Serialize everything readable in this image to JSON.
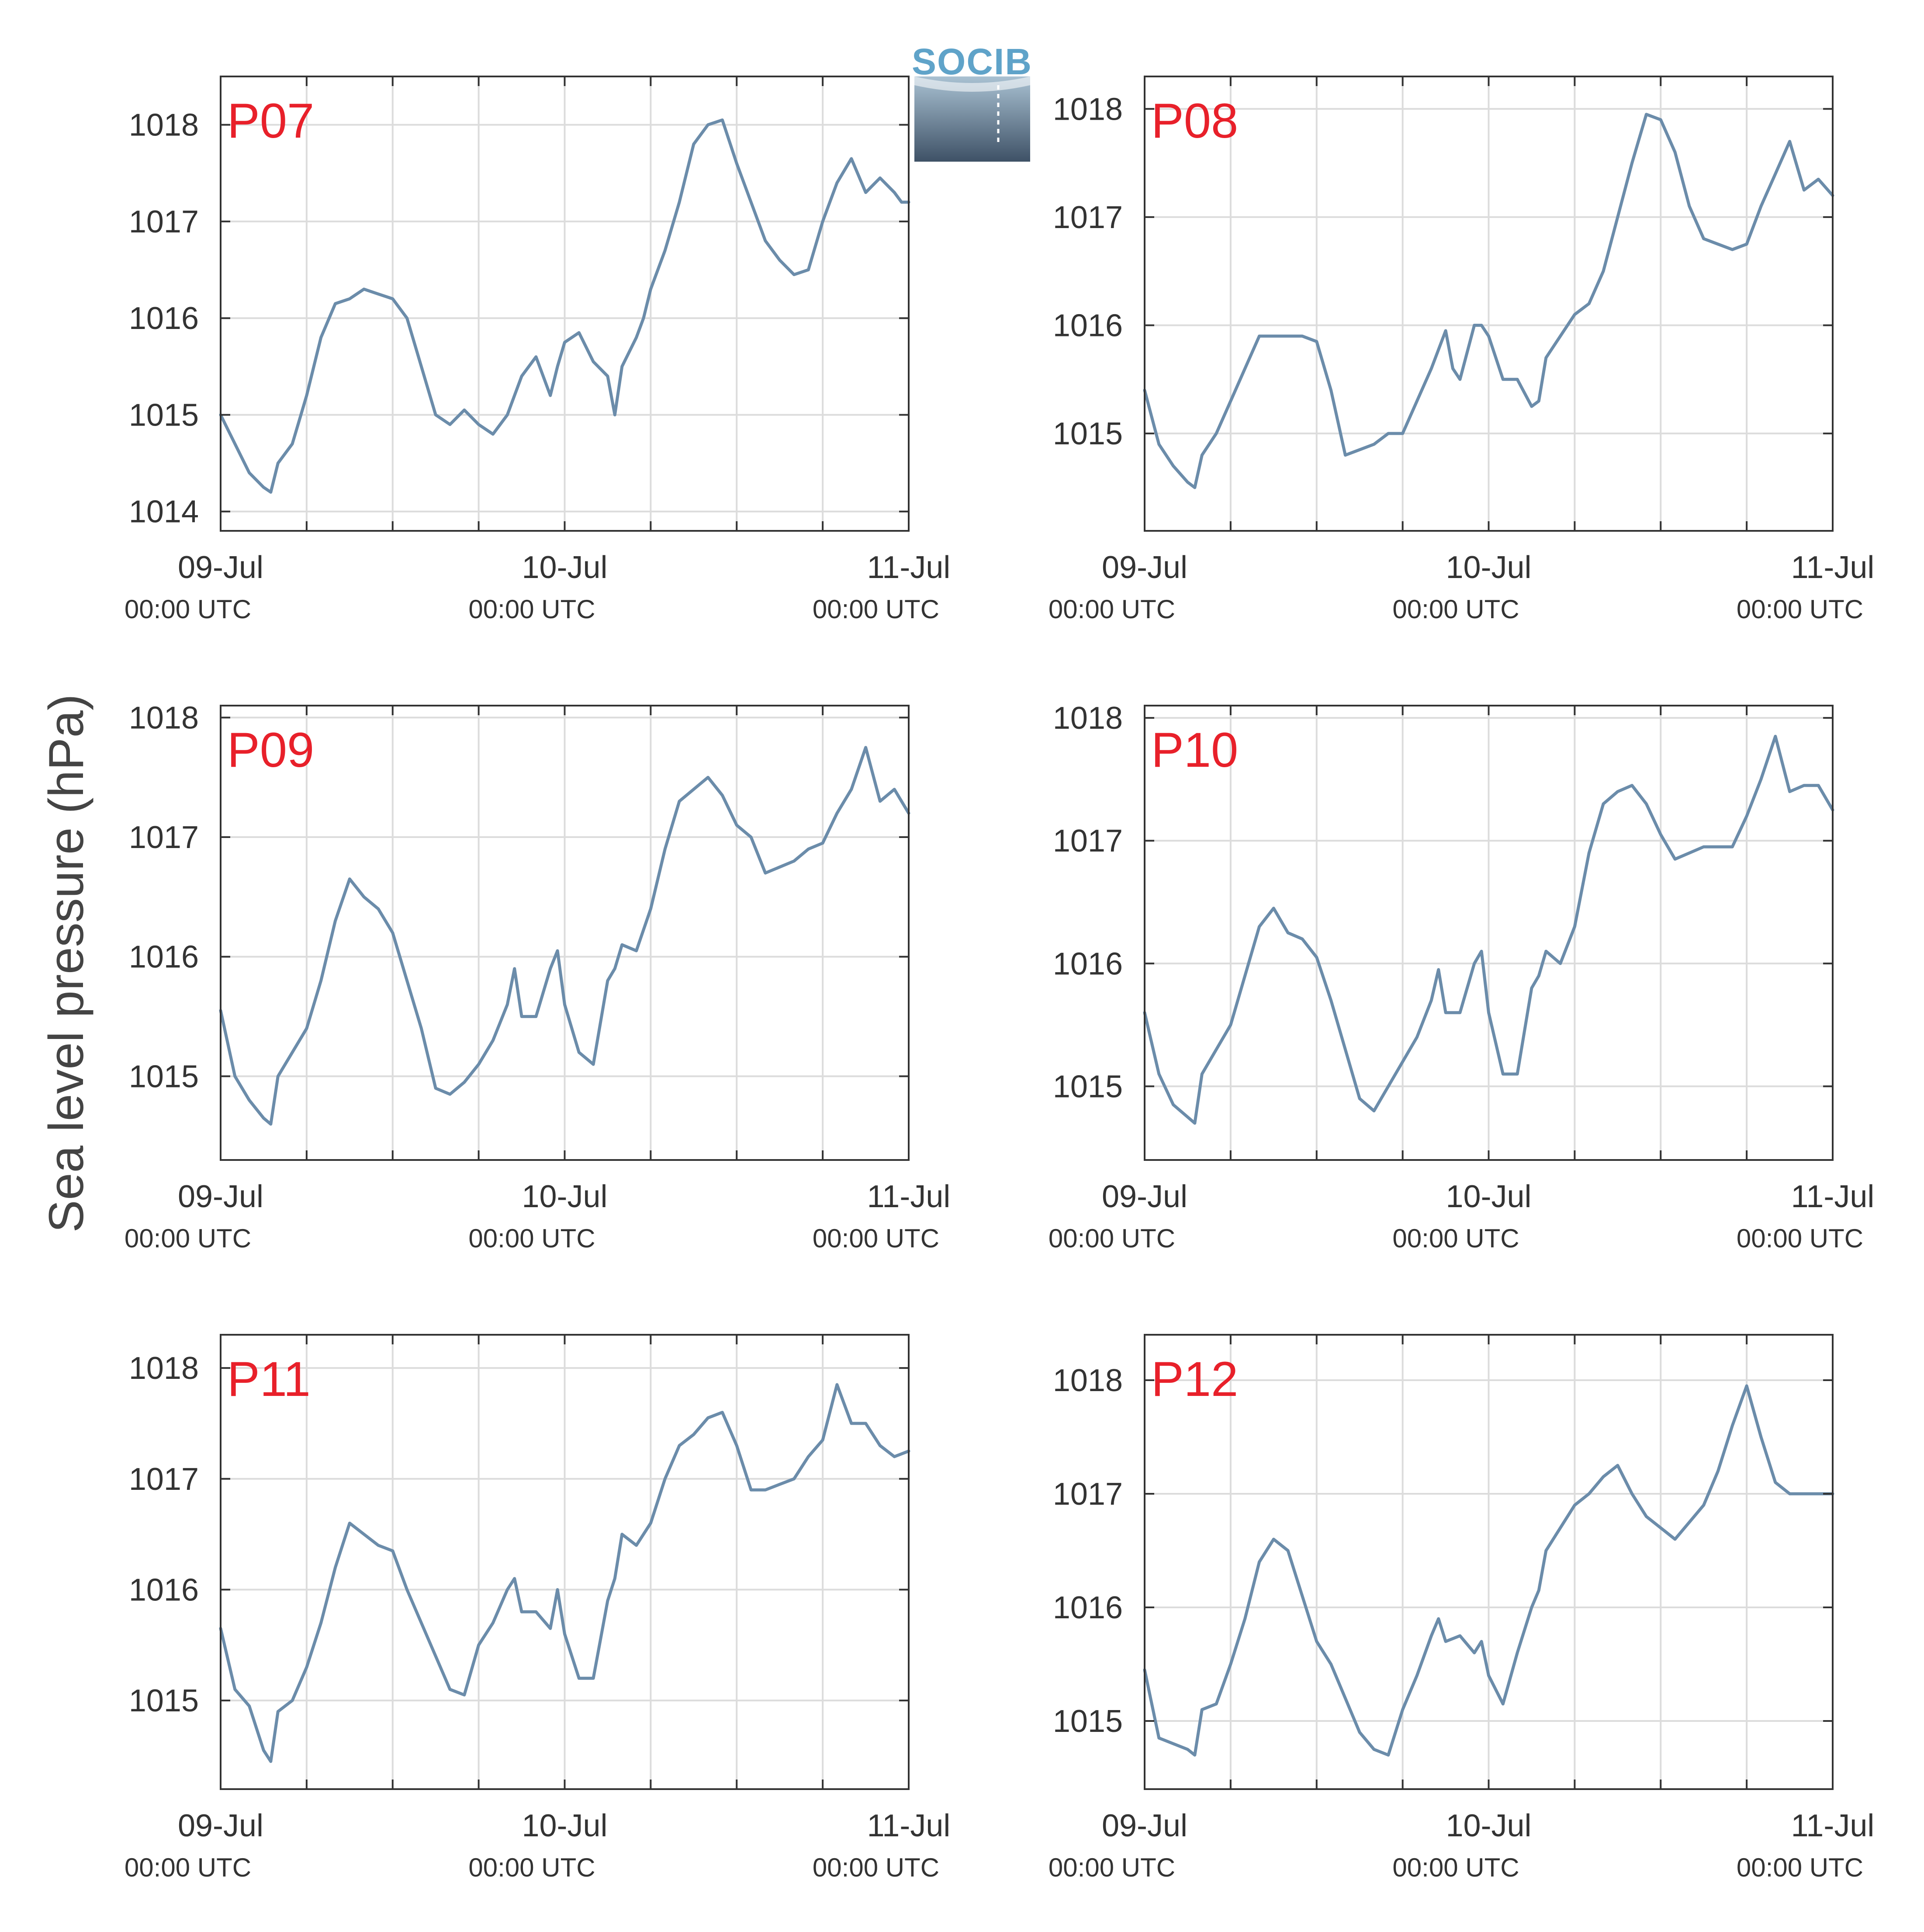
{
  "colors": {
    "line": "#6b8caa",
    "panel_label": "#e8202a",
    "axis": "#333333",
    "grid": "#dcdcdc",
    "logo_text": "#5fa3c9",
    "logo_top": "#a9c1d2",
    "logo_bottom": "#3e5166"
  },
  "logo": {
    "text": "SOCIB"
  },
  "ylabel": "Sea level pressure (hPa)",
  "chart_data": [
    {
      "type": "line",
      "panel": "P07",
      "grid": true,
      "xlim": [
        0,
        48
      ],
      "ylim": [
        1013.8,
        1018.5
      ],
      "xticks": [
        {
          "value": 0,
          "date": "09-Jul",
          "time": "00:00 UTC"
        },
        {
          "value": 24,
          "date": "10-Jul",
          "time": "00:00 UTC"
        },
        {
          "value": 48,
          "date": "11-Jul",
          "time": "00:00 UTC"
        }
      ],
      "minor_xticks": [
        6,
        12,
        18,
        30,
        36,
        42
      ],
      "yticks": [
        1014,
        1015,
        1016,
        1017,
        1018
      ],
      "x": [
        0,
        1,
        2,
        3,
        3.5,
        4,
        5,
        6,
        7,
        8,
        9,
        10,
        11,
        12,
        13,
        14,
        15,
        16,
        17,
        18,
        19,
        20,
        20.5,
        21,
        22,
        23,
        23.5,
        24,
        25,
        26,
        27,
        27.5,
        28,
        29,
        29.5,
        30,
        31,
        32,
        33,
        34,
        35,
        36,
        37,
        38,
        39,
        40,
        41,
        42,
        43,
        44,
        45,
        46,
        47,
        47.5,
        48
      ],
      "values": [
        1015.0,
        1014.7,
        1014.4,
        1014.25,
        1014.2,
        1014.5,
        1014.7,
        1015.2,
        1015.8,
        1016.15,
        1016.2,
        1016.3,
        1016.25,
        1016.2,
        1016.0,
        1015.5,
        1015.0,
        1014.9,
        1015.05,
        1014.9,
        1014.8,
        1015.0,
        1015.2,
        1015.4,
        1015.6,
        1015.2,
        1015.5,
        1015.75,
        1015.85,
        1015.55,
        1015.4,
        1015.0,
        1015.5,
        1015.8,
        1016.0,
        1016.3,
        1016.7,
        1017.2,
        1017.8,
        1018.0,
        1018.05,
        1017.6,
        1017.2,
        1016.8,
        1016.6,
        1016.45,
        1016.5,
        1017.0,
        1017.4,
        1017.65,
        1017.3,
        1017.45,
        1017.3,
        1017.2,
        1017.2
      ]
    },
    {
      "type": "line",
      "panel": "P08",
      "grid": true,
      "xlim": [
        0,
        48
      ],
      "ylim": [
        1014.1,
        1018.3
      ],
      "xticks": [
        {
          "value": 0,
          "date": "09-Jul",
          "time": "00:00 UTC"
        },
        {
          "value": 24,
          "date": "10-Jul",
          "time": "00:00 UTC"
        },
        {
          "value": 48,
          "date": "11-Jul",
          "time": "00:00 UTC"
        }
      ],
      "minor_xticks": [
        6,
        12,
        18,
        30,
        36,
        42
      ],
      "yticks": [
        1015,
        1016,
        1017,
        1018
      ],
      "x": [
        0,
        1,
        2,
        3,
        3.5,
        4,
        5,
        6,
        7,
        8,
        9,
        10,
        11,
        12,
        13,
        14,
        15,
        16,
        17,
        18,
        19,
        20,
        21,
        21.5,
        22,
        23,
        23.5,
        24,
        25,
        26,
        27,
        27.5,
        28,
        29,
        30,
        31,
        32,
        33,
        34,
        35,
        36,
        37,
        38,
        39,
        40,
        41,
        42,
        43,
        44,
        45,
        46,
        47,
        48
      ],
      "values": [
        1015.4,
        1014.9,
        1014.7,
        1014.55,
        1014.5,
        1014.8,
        1015.0,
        1015.3,
        1015.6,
        1015.9,
        1015.9,
        1015.9,
        1015.9,
        1015.85,
        1015.4,
        1014.8,
        1014.85,
        1014.9,
        1015.0,
        1015.0,
        1015.3,
        1015.6,
        1015.95,
        1015.6,
        1015.5,
        1016.0,
        1016.0,
        1015.9,
        1015.5,
        1015.5,
        1015.25,
        1015.3,
        1015.7,
        1015.9,
        1016.1,
        1016.2,
        1016.5,
        1017.0,
        1017.5,
        1017.95,
        1017.9,
        1017.6,
        1017.1,
        1016.8,
        1016.75,
        1016.7,
        1016.75,
        1017.1,
        1017.4,
        1017.7,
        1017.25,
        1017.35,
        1017.2
      ]
    },
    {
      "type": "line",
      "panel": "P09",
      "grid": true,
      "xlim": [
        0,
        48
      ],
      "ylim": [
        1014.3,
        1018.1
      ],
      "xticks": [
        {
          "value": 0,
          "date": "09-Jul",
          "time": "00:00 UTC"
        },
        {
          "value": 24,
          "date": "10-Jul",
          "time": "00:00 UTC"
        },
        {
          "value": 48,
          "date": "11-Jul",
          "time": "00:00 UTC"
        }
      ],
      "minor_xticks": [
        6,
        12,
        18,
        30,
        36,
        42
      ],
      "yticks": [
        1015,
        1016,
        1017,
        1018
      ],
      "x": [
        0,
        1,
        2,
        3,
        3.5,
        4,
        5,
        6,
        7,
        8,
        9,
        10,
        11,
        12,
        13,
        14,
        15,
        16,
        17,
        18,
        19,
        20,
        20.5,
        21,
        22,
        23,
        23.5,
        24,
        25,
        26,
        27,
        27.5,
        28,
        29,
        30,
        31,
        32,
        33,
        34,
        35,
        36,
        37,
        38,
        39,
        40,
        41,
        42,
        43,
        44,
        45,
        46,
        47,
        48
      ],
      "values": [
        1015.55,
        1015.0,
        1014.8,
        1014.65,
        1014.6,
        1015.0,
        1015.2,
        1015.4,
        1015.8,
        1016.3,
        1016.65,
        1016.5,
        1016.4,
        1016.2,
        1015.8,
        1015.4,
        1014.9,
        1014.85,
        1014.95,
        1015.1,
        1015.3,
        1015.6,
        1015.9,
        1015.5,
        1015.5,
        1015.9,
        1016.05,
        1015.6,
        1015.2,
        1015.1,
        1015.8,
        1015.9,
        1016.1,
        1016.05,
        1016.4,
        1016.9,
        1017.3,
        1017.4,
        1017.5,
        1017.35,
        1017.1,
        1017.0,
        1016.7,
        1016.75,
        1016.8,
        1016.9,
        1016.95,
        1017.2,
        1017.4,
        1017.75,
        1017.3,
        1017.4,
        1017.2
      ]
    },
    {
      "type": "line",
      "panel": "P10",
      "grid": true,
      "xlim": [
        0,
        48
      ],
      "ylim": [
        1014.4,
        1018.1
      ],
      "xticks": [
        {
          "value": 0,
          "date": "09-Jul",
          "time": "00:00 UTC"
        },
        {
          "value": 24,
          "date": "10-Jul",
          "time": "00:00 UTC"
        },
        {
          "value": 48,
          "date": "11-Jul",
          "time": "00:00 UTC"
        }
      ],
      "minor_xticks": [
        6,
        12,
        18,
        30,
        36,
        42
      ],
      "yticks": [
        1015,
        1016,
        1017,
        1018
      ],
      "x": [
        0,
        1,
        2,
        3,
        3.5,
        4,
        5,
        6,
        7,
        8,
        9,
        10,
        11,
        12,
        13,
        14,
        15,
        16,
        17,
        18,
        19,
        20,
        20.5,
        21,
        22,
        23,
        23.5,
        24,
        25,
        26,
        27,
        27.5,
        28,
        29,
        30,
        31,
        32,
        33,
        34,
        35,
        36,
        37,
        38,
        39,
        40,
        41,
        42,
        43,
        44,
        45,
        46,
        47,
        48
      ],
      "values": [
        1015.6,
        1015.1,
        1014.85,
        1014.75,
        1014.7,
        1015.1,
        1015.3,
        1015.5,
        1015.9,
        1016.3,
        1016.45,
        1016.25,
        1016.2,
        1016.05,
        1015.7,
        1015.3,
        1014.9,
        1014.8,
        1015.0,
        1015.2,
        1015.4,
        1015.7,
        1015.95,
        1015.6,
        1015.6,
        1016.0,
        1016.1,
        1015.6,
        1015.1,
        1015.1,
        1015.8,
        1015.9,
        1016.1,
        1016.0,
        1016.3,
        1016.9,
        1017.3,
        1017.4,
        1017.45,
        1017.3,
        1017.05,
        1016.85,
        1016.9,
        1016.95,
        1016.95,
        1016.95,
        1017.2,
        1017.5,
        1017.85,
        1017.4,
        1017.45,
        1017.45,
        1017.25
      ]
    },
    {
      "type": "line",
      "panel": "P11",
      "grid": true,
      "xlim": [
        0,
        48
      ],
      "ylim": [
        1014.2,
        1018.3
      ],
      "xticks": [
        {
          "value": 0,
          "date": "09-Jul",
          "time": "00:00 UTC"
        },
        {
          "value": 24,
          "date": "10-Jul",
          "time": "00:00 UTC"
        },
        {
          "value": 48,
          "date": "11-Jul",
          "time": "00:00 UTC"
        }
      ],
      "minor_xticks": [
        6,
        12,
        18,
        30,
        36,
        42
      ],
      "yticks": [
        1015,
        1016,
        1017,
        1018
      ],
      "x": [
        0,
        1,
        2,
        3,
        3.5,
        4,
        5,
        6,
        7,
        8,
        9,
        10,
        11,
        12,
        13,
        14,
        15,
        16,
        17,
        18,
        19,
        20,
        20.5,
        21,
        22,
        23,
        23.5,
        24,
        25,
        26,
        27,
        27.5,
        28,
        29,
        30,
        31,
        32,
        33,
        34,
        35,
        36,
        37,
        38,
        39,
        40,
        41,
        42,
        43,
        44,
        45,
        46,
        47,
        48
      ],
      "values": [
        1015.65,
        1015.1,
        1014.95,
        1014.55,
        1014.45,
        1014.9,
        1015.0,
        1015.3,
        1015.7,
        1016.2,
        1016.6,
        1016.5,
        1016.4,
        1016.35,
        1016.0,
        1015.7,
        1015.4,
        1015.1,
        1015.05,
        1015.5,
        1015.7,
        1016.0,
        1016.1,
        1015.8,
        1015.8,
        1015.65,
        1016.0,
        1015.6,
        1015.2,
        1015.2,
        1015.9,
        1016.1,
        1016.5,
        1016.4,
        1016.6,
        1017.0,
        1017.3,
        1017.4,
        1017.55,
        1017.6,
        1017.3,
        1016.9,
        1016.9,
        1016.95,
        1017.0,
        1017.2,
        1017.35,
        1017.85,
        1017.5,
        1017.5,
        1017.3,
        1017.2,
        1017.25
      ]
    },
    {
      "type": "line",
      "panel": "P12",
      "grid": true,
      "xlim": [
        0,
        48
      ],
      "ylim": [
        1014.4,
        1018.4
      ],
      "xticks": [
        {
          "value": 0,
          "date": "09-Jul",
          "time": "00:00 UTC"
        },
        {
          "value": 24,
          "date": "10-Jul",
          "time": "00:00 UTC"
        },
        {
          "value": 48,
          "date": "11-Jul",
          "time": "00:00 UTC"
        }
      ],
      "minor_xticks": [
        6,
        12,
        18,
        30,
        36,
        42
      ],
      "yticks": [
        1015,
        1016,
        1017,
        1018
      ],
      "x": [
        0,
        1,
        2,
        3,
        3.5,
        4,
        5,
        6,
        7,
        8,
        9,
        10,
        11,
        12,
        13,
        14,
        15,
        16,
        17,
        18,
        19,
        20,
        20.5,
        21,
        22,
        23,
        23.5,
        24,
        25,
        26,
        27,
        27.5,
        28,
        29,
        30,
        31,
        32,
        33,
        34,
        35,
        36,
        37,
        38,
        39,
        40,
        41,
        42,
        43,
        44,
        45,
        46,
        47,
        48
      ],
      "values": [
        1015.45,
        1014.85,
        1014.8,
        1014.75,
        1014.7,
        1015.1,
        1015.15,
        1015.5,
        1015.9,
        1016.4,
        1016.6,
        1016.5,
        1016.1,
        1015.7,
        1015.5,
        1015.2,
        1014.9,
        1014.75,
        1014.7,
        1015.1,
        1015.4,
        1015.75,
        1015.9,
        1015.7,
        1015.75,
        1015.6,
        1015.7,
        1015.4,
        1015.15,
        1015.6,
        1016.0,
        1016.15,
        1016.5,
        1016.7,
        1016.9,
        1017.0,
        1017.15,
        1017.25,
        1017.0,
        1016.8,
        1016.7,
        1016.6,
        1016.75,
        1016.9,
        1017.2,
        1017.6,
        1017.95,
        1017.5,
        1017.1,
        1017.0,
        1017.0,
        1017.0,
        1017.0
      ]
    }
  ]
}
